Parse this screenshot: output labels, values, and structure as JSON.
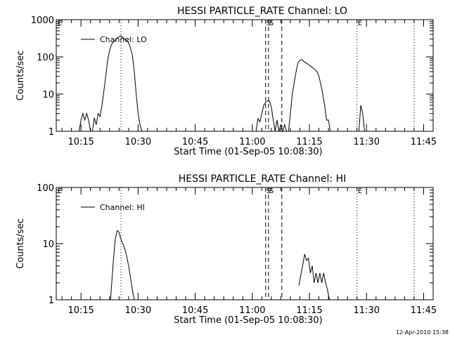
{
  "timestamp": "12-Apr-2010 15:38",
  "chart_data": [
    {
      "type": "line",
      "title": "HESSI PARTICLE_RATE Channel: LO",
      "xlabel": "Start Time (01-Sep-05 10:08:30)",
      "ylabel": "Counts/sec",
      "x_unit": "minutes",
      "xlim": [
        "10:08:30",
        "11:47:30"
      ],
      "ylim": [
        1,
        1000
      ],
      "y_scale": "log",
      "x_ticks": [
        "10:15",
        "10:30",
        "10:45",
        "11:00",
        "11:15",
        "11:30",
        "11:45"
      ],
      "y_ticks": [
        "1",
        "10",
        "100",
        "1000"
      ],
      "legend": {
        "position": "top-left",
        "entries": [
          "Channel: LO"
        ]
      },
      "markers": [
        {
          "time": "10:25:30",
          "label": "",
          "style": "dotted"
        },
        {
          "time": "11:03:30",
          "label": "S",
          "style": "dashed"
        },
        {
          "time": "11:04:15",
          "label": "S",
          "style": "dashed"
        },
        {
          "time": "11:07:45",
          "label": "",
          "style": "dashed"
        },
        {
          "time": "11:27:30",
          "label": "E",
          "style": "dotted"
        },
        {
          "time": "11:42:30",
          "label": "",
          "style": "dotted"
        }
      ],
      "edge_label": "E",
      "series": [
        {
          "segments": [
            [
              [
                "10:14:30",
                1
              ],
              [
                "10:15:00",
                2
              ],
              [
                "10:15:30",
                3
              ],
              [
                "10:16:00",
                2
              ],
              [
                "10:16:30",
                3
              ],
              [
                "10:17:00",
                2
              ],
              [
                "10:17:30",
                1
              ]
            ],
            [
              [
                "10:18:00",
                1
              ],
              [
                "10:18:30",
                2.3
              ],
              [
                "10:19:00",
                1.5
              ],
              [
                "10:19:30",
                3
              ],
              [
                "10:20:00",
                2.5
              ],
              [
                "10:20:30",
                5
              ],
              [
                "10:21:00",
                12
              ],
              [
                "10:21:30",
                30
              ],
              [
                "10:22:00",
                80
              ],
              [
                "10:22:30",
                150
              ],
              [
                "10:23:00",
                210
              ],
              [
                "10:23:30",
                250
              ],
              [
                "10:24:00",
                280
              ],
              [
                "10:24:30",
                320
              ],
              [
                "10:25:00",
                350
              ],
              [
                "10:25:30",
                370
              ],
              [
                "10:26:00",
                330
              ],
              [
                "10:26:30",
                300
              ],
              [
                "10:27:00",
                280
              ],
              [
                "10:27:30",
                240
              ],
              [
                "10:28:00",
                170
              ],
              [
                "10:28:30",
                110
              ],
              [
                "10:29:00",
                40
              ],
              [
                "10:29:30",
                10
              ],
              [
                "10:30:00",
                3
              ],
              [
                "10:30:30",
                1.5
              ],
              [
                "10:31:00",
                1
              ]
            ],
            [
              [
                "11:01:00",
                1
              ],
              [
                "11:01:30",
                2.2
              ],
              [
                "11:02:00",
                1.8
              ],
              [
                "11:02:30",
                3
              ],
              [
                "11:03:00",
                5
              ],
              [
                "11:03:30",
                6
              ],
              [
                "11:04:00",
                6.5
              ],
              [
                "11:04:30",
                6.5
              ],
              [
                "11:05:00",
                4.5
              ],
              [
                "11:05:30",
                2
              ],
              [
                "11:06:00",
                1
              ],
              [
                "11:06:30",
                2
              ],
              [
                "11:07:00",
                1
              ],
              [
                "11:07:30",
                1.5
              ],
              [
                "11:08:00",
                1
              ],
              [
                "11:08:30",
                1.5
              ],
              [
                "11:09:00",
                1
              ]
            ],
            [
              [
                "11:09:30",
                1
              ],
              [
                "11:10:00",
                3
              ],
              [
                "11:10:30",
                10
              ],
              [
                "11:11:00",
                20
              ],
              [
                "11:11:30",
                40
              ],
              [
                "11:12:00",
                70
              ],
              [
                "11:12:30",
                80
              ],
              [
                "11:13:00",
                85
              ],
              [
                "11:13:30",
                75
              ],
              [
                "11:14:00",
                70
              ],
              [
                "11:14:30",
                65
              ],
              [
                "11:15:00",
                60
              ],
              [
                "11:15:30",
                55
              ],
              [
                "11:16:00",
                50
              ],
              [
                "11:16:30",
                45
              ],
              [
                "11:17:00",
                40
              ],
              [
                "11:17:30",
                30
              ],
              [
                "11:18:00",
                18
              ],
              [
                "11:18:30",
                10
              ],
              [
                "11:19:00",
                5
              ],
              [
                "11:19:30",
                2
              ],
              [
                "11:20:00",
                2
              ],
              [
                "11:20:30",
                1
              ]
            ],
            [
              [
                "11:28:00",
                1
              ],
              [
                "11:28:30",
                5
              ],
              [
                "11:29:00",
                3
              ],
              [
                "11:29:30",
                1
              ]
            ]
          ]
        }
      ]
    },
    {
      "type": "line",
      "title": "HESSI PARTICLE_RATE Channel: HI",
      "xlabel": "Start Time (01-Sep-05 10:08:30)",
      "ylabel": "Counts/sec",
      "x_unit": "minutes",
      "xlim": [
        "10:08:30",
        "11:47:30"
      ],
      "ylim": [
        1,
        100
      ],
      "y_scale": "log",
      "x_ticks": [
        "10:15",
        "10:30",
        "10:45",
        "11:00",
        "11:15",
        "11:30",
        "11:45"
      ],
      "y_ticks": [
        "1",
        "10",
        "100"
      ],
      "legend": {
        "position": "top-left",
        "entries": [
          "Channel: HI"
        ]
      },
      "markers": [
        {
          "time": "10:25:30",
          "label": "",
          "style": "dotted"
        },
        {
          "time": "11:03:30",
          "label": "S",
          "style": "dashed"
        },
        {
          "time": "11:04:15",
          "label": "S",
          "style": "dashed"
        },
        {
          "time": "11:07:45",
          "label": "",
          "style": "dashed"
        },
        {
          "time": "11:27:30",
          "label": "E",
          "style": "dotted"
        },
        {
          "time": "11:42:30",
          "label": "",
          "style": "dotted"
        }
      ],
      "edge_label": "E",
      "series": [
        {
          "segments": [
            [
              [
                "10:22:45",
                1
              ],
              [
                "10:23:30",
                5
              ],
              [
                "10:24:00",
                12
              ],
              [
                "10:24:30",
                17
              ],
              [
                "10:25:00",
                16
              ],
              [
                "10:25:30",
                12
              ],
              [
                "10:26:00",
                10
              ],
              [
                "10:26:30",
                8
              ],
              [
                "10:27:00",
                6
              ],
              [
                "10:27:30",
                4
              ],
              [
                "10:28:00",
                2.5
              ],
              [
                "10:28:30",
                1.5
              ],
              [
                "10:29:00",
                1
              ]
            ],
            [
              [
                "11:12:15",
                1.8
              ],
              [
                "11:12:45",
                2.8
              ],
              [
                "11:13:15",
                4.2
              ],
              [
                "11:13:45",
                6.5
              ],
              [
                "11:14:15",
                5
              ],
              [
                "11:14:45",
                5.5
              ],
              [
                "11:15:15",
                3
              ],
              [
                "11:15:45",
                4
              ],
              [
                "11:16:15",
                2
              ],
              [
                "11:16:45",
                3
              ],
              [
                "11:17:15",
                2
              ],
              [
                "11:17:45",
                3
              ],
              [
                "11:18:15",
                2
              ],
              [
                "11:18:45",
                3
              ],
              [
                "11:19:15",
                2
              ],
              [
                "11:19:45",
                1.5
              ],
              [
                "11:20:15",
                1
              ]
            ]
          ]
        }
      ]
    }
  ]
}
